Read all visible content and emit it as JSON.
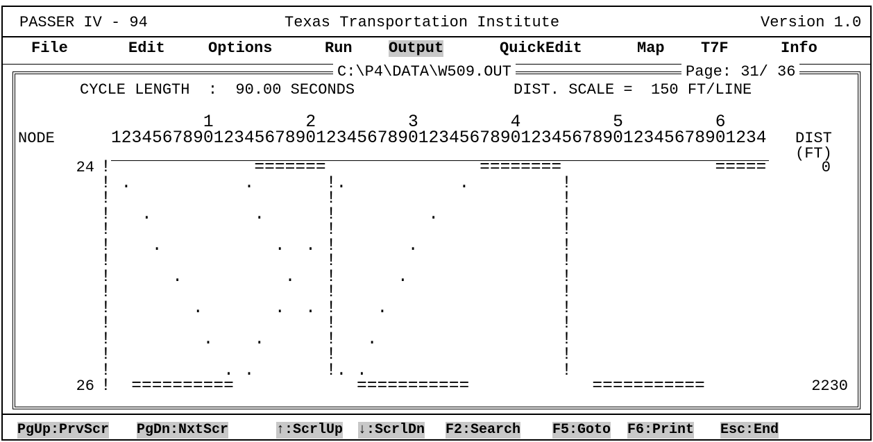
{
  "header": {
    "app": "PASSER IV - 94",
    "org": "Texas Transportation Institute",
    "version": "Version 1.0"
  },
  "menu": [
    "File",
    "Edit",
    "Options",
    "Run",
    "Output",
    "QuickEdit",
    "Map",
    "T7F",
    "Info"
  ],
  "window": {
    "file": "C:\\P4\\DATA\\W509.OUT",
    "page": "Page: 31/ 36",
    "cycle": "CYCLE LENGTH  :  90.00 SECONDS",
    "scale": "DIST. SCALE =  150 FT/LINE",
    "node_header": "NODE",
    "dist_header": "DIST",
    "dist_unit": "(FT)",
    "tens": "         1         2         3         4         5         6",
    "units": "1234567890123456789012345678901234567890123456789012345678901234",
    "top_node": "24",
    "top_dist": "0",
    "bottom_node": "26",
    "bottom_dist": "2230",
    "rows": [
      "!              =======               ========               =====",
      "! .           .       !.           .         !",
      "!                     !                      !",
      "!   .          .      !         .            !",
      "!                     !                      !",
      "!    .           .  . !       .              !",
      "!                     !                      !",
      "!      .          .   !      .               !",
      "!                     !                      !",
      "!        .       .  . !    .                 !",
      "!                     !                      !",
      "!         .    .      !   .                  !",
      "!                     !                      !",
      "!           . .       !. .                   !",
      "!  ==========            ===========            ==========="
    ]
  },
  "status": [
    "PgUp:PrvScr",
    "PgDn:NxtScr",
    "↑:ScrlUp",
    "↓:ScrlDn",
    "F2:Search",
    "F5:Goto",
    "F6:Print",
    "Esc:End"
  ]
}
